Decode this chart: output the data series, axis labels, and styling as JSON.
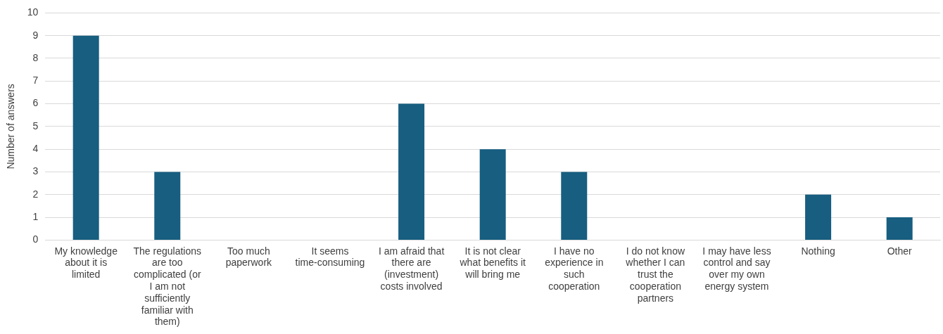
{
  "chart_data": {
    "type": "bar",
    "ylabel": "Number of answers",
    "categories": [
      "My knowledge about it is limited",
      "The regulations are too complicated (or I am not sufficiently familiar with them)",
      "Too much paperwork",
      "It seems time-consuming",
      "I am afraid that there are (investment) costs involved",
      "It is not clear what benefits it will bring me",
      "I have no experience in such cooperation",
      "I do not know whether I can trust the cooperation partners",
      "I may have less control and say over my own energy system",
      "Nothing",
      "Other"
    ],
    "values": [
      9,
      3,
      0,
      0,
      6,
      4,
      3,
      0,
      0,
      2,
      1
    ],
    "color": "#175e80",
    "ylim": [
      0,
      10
    ],
    "yticks": [
      0,
      1,
      2,
      3,
      4,
      5,
      6,
      7,
      8,
      9,
      10
    ],
    "grid": "y",
    "legend": false
  }
}
